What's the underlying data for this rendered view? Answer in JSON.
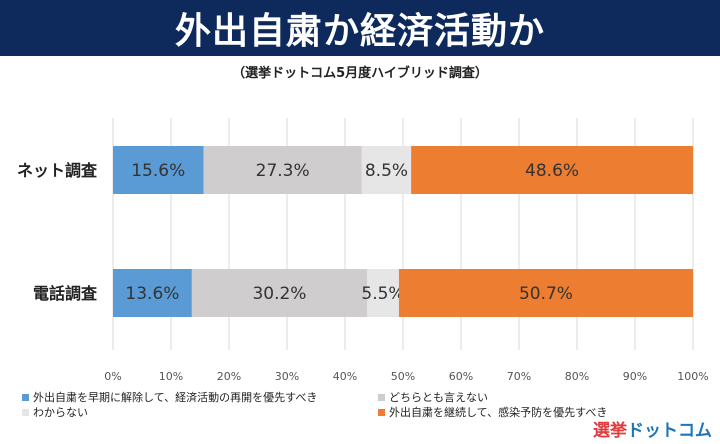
{
  "header": {
    "title": "外出自粛か経済活動か"
  },
  "subtitle": "（選挙ドットコム5月度ハイブリッド調査）",
  "colors": {
    "blue": "#5b9bd5",
    "gray": "#cfcdcd",
    "lightgray": "#e6e6e6",
    "orange": "#ed7d31",
    "header_bg": "#0e2a5c"
  },
  "chart_data": {
    "type": "bar",
    "orientation": "horizontal",
    "stacked": true,
    "categories": [
      "ネット調査",
      "電話調査"
    ],
    "series": [
      {
        "name": "外出自粛を早期に解除して、経済活動の再開を優先すべき",
        "values": [
          15.6,
          13.6
        ],
        "labels": [
          "15.6%",
          "13.6%"
        ]
      },
      {
        "name": "どちらとも言えない",
        "values": [
          27.3,
          30.2
        ],
        "labels": [
          "27.3%",
          "30.2%"
        ]
      },
      {
        "name": "わからない",
        "values": [
          8.5,
          5.5
        ],
        "labels": [
          "8.5%",
          "5.5%"
        ]
      },
      {
        "name": "外出自粛を継続して、感染予防を優先すべき",
        "values": [
          48.6,
          50.7
        ],
        "labels": [
          "48.6%",
          "50.7%"
        ]
      }
    ],
    "xlim": [
      0,
      100
    ],
    "xticks": [
      "0%",
      "10%",
      "20%",
      "30%",
      "40%",
      "50%",
      "60%",
      "70%",
      "80%",
      "90%",
      "100%"
    ],
    "grid": true,
    "legend_position": "bottom"
  },
  "logo": {
    "part1": "選挙",
    "part2": "ドットコム"
  }
}
